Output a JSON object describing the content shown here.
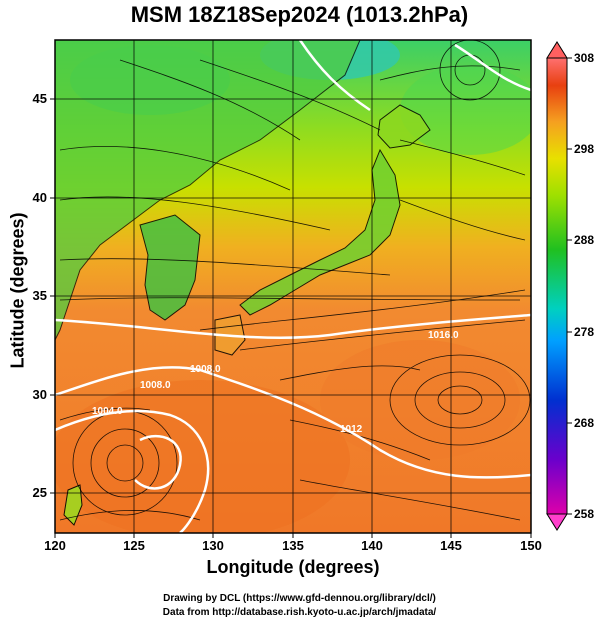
{
  "title": "MSM 18Z18Sep2024 (1013.2hPa)",
  "map": {
    "xlabel": "Longitude (degrees)",
    "ylabel": "Latitude  (degrees)",
    "lon_range": [
      120,
      150
    ],
    "lat_range": [
      22.5,
      47.5
    ],
    "lon_ticks": [
      "120",
      "125",
      "130",
      "135",
      "140",
      "145",
      "150"
    ],
    "lat_ticks": [
      "25",
      "30",
      "35",
      "40",
      "45"
    ],
    "grid": true,
    "field": "temperature (K) with streamlines and isobars",
    "isobar_labels": [
      "1008.0",
      "1016.0",
      "1004.0",
      "1008.0",
      "1012"
    ],
    "low_centers": [
      {
        "lon": 125.5,
        "lat": 27.2
      },
      {
        "lon": 145.3,
        "lat": 30.8
      },
      {
        "lon": 146.0,
        "lat": 45.5
      }
    ]
  },
  "colorbar": {
    "ticks": [
      "308",
      "298",
      "288",
      "278",
      "268",
      "258"
    ],
    "tick_values": [
      308,
      298,
      288,
      278,
      268,
      258
    ],
    "range": [
      258,
      308
    ],
    "colors": [
      "#cc0099",
      "#6600cc",
      "#0033cc",
      "#0099ff",
      "#00ccbb",
      "#22bb22",
      "#99dd00",
      "#dddd00",
      "#f08020",
      "#e03010",
      "#ff6666"
    ]
  },
  "credits": {
    "line1": "Drawing by DCL (https://www.gfd-dennou.org/library/dcl/)",
    "line2": "Data from http://database.rish.kyoto-u.ac.jp/arch/jmadata/"
  }
}
